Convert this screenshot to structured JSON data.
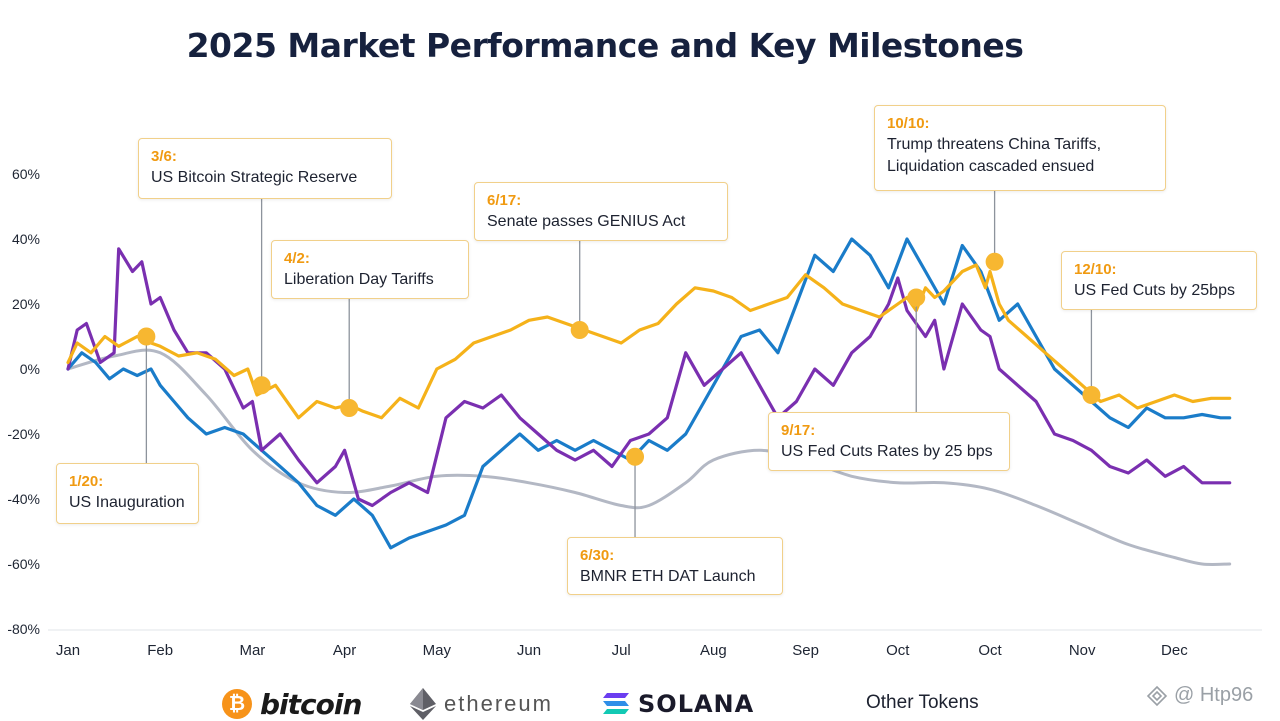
{
  "chart_data": {
    "type": "line",
    "title": "2025 Market Performance and Key Milestones",
    "xlabel": "",
    "ylabel": "",
    "ylim": [
      -80,
      60
    ],
    "yticks": [
      "60%",
      "40%",
      "20%",
      "0%",
      "-20%",
      "-40%",
      "-60%",
      "-80%"
    ],
    "ytick_values": [
      60,
      40,
      20,
      0,
      -20,
      -40,
      -60,
      -80
    ],
    "categories": [
      "Jan",
      "Feb",
      "Mar",
      "Apr",
      "May",
      "Jun",
      "Jul",
      "Aug",
      "Sep",
      "Oct",
      "Oct",
      "Nov",
      "Dec"
    ],
    "x_range": [
      0,
      12.6
    ],
    "series": [
      {
        "name": "Bitcoin",
        "color": "#f5b21a",
        "x": [
          0,
          0.1,
          0.25,
          0.4,
          0.55,
          0.75,
          0.9,
          1.0,
          1.2,
          1.4,
          1.6,
          1.8,
          1.95,
          2.05,
          2.25,
          2.5,
          2.7,
          2.9,
          3.05,
          3.2,
          3.4,
          3.6,
          3.8,
          4.0,
          4.2,
          4.4,
          4.6,
          4.8,
          5.0,
          5.2,
          5.4,
          5.6,
          5.8,
          6.0,
          6.2,
          6.4,
          6.6,
          6.8,
          7.0,
          7.2,
          7.4,
          7.6,
          7.8,
          8.0,
          8.2,
          8.4,
          8.6,
          8.8,
          9.0,
          9.1,
          9.2,
          9.3,
          9.4,
          9.5,
          9.7,
          9.85,
          9.95,
          10.0,
          10.1,
          10.2,
          10.4,
          10.6,
          10.8,
          11.0,
          11.2,
          11.4,
          11.6,
          11.8,
          12.0,
          12.2,
          12.4,
          12.6
        ],
        "values": [
          2,
          8,
          5,
          10,
          7,
          10,
          8,
          7,
          4,
          5,
          3,
          -2,
          0,
          -8,
          -5,
          -15,
          -10,
          -12,
          -11,
          -13,
          -15,
          -9,
          -12,
          0,
          3,
          8,
          10,
          12,
          15,
          16,
          14,
          12,
          10,
          8,
          12,
          14,
          20,
          25,
          24,
          22,
          18,
          20,
          22,
          29,
          25,
          20,
          18,
          16,
          20,
          22,
          18,
          25,
          22,
          24,
          30,
          32,
          25,
          30,
          20,
          15,
          10,
          5,
          0,
          -5,
          -10,
          -8,
          -12,
          -10,
          -8,
          -10,
          -9,
          -9
        ]
      },
      {
        "name": "Ethereum",
        "color": "#7a2fb0",
        "x": [
          0,
          0.1,
          0.2,
          0.35,
          0.5,
          0.55,
          0.7,
          0.8,
          0.9,
          1.0,
          1.15,
          1.3,
          1.5,
          1.7,
          1.9,
          2.0,
          2.1,
          2.3,
          2.5,
          2.7,
          2.9,
          3.0,
          3.15,
          3.3,
          3.5,
          3.7,
          3.9,
          4.1,
          4.3,
          4.5,
          4.7,
          4.9,
          5.1,
          5.3,
          5.5,
          5.7,
          5.9,
          6.1,
          6.3,
          6.5,
          6.7,
          6.9,
          7.1,
          7.3,
          7.5,
          7.7,
          7.9,
          8.1,
          8.3,
          8.5,
          8.7,
          8.9,
          9.0,
          9.1,
          9.3,
          9.4,
          9.5,
          9.7,
          9.9,
          10.0,
          10.1,
          10.3,
          10.5,
          10.7,
          10.9,
          11.1,
          11.3,
          11.5,
          11.7,
          11.9,
          12.1,
          12.3,
          12.5,
          12.6
        ],
        "values": [
          0,
          12,
          14,
          2,
          5,
          37,
          30,
          33,
          20,
          22,
          12,
          5,
          5,
          0,
          -12,
          -10,
          -25,
          -20,
          -28,
          -35,
          -30,
          -25,
          -40,
          -42,
          -38,
          -35,
          -38,
          -15,
          -10,
          -12,
          -8,
          -15,
          -20,
          -25,
          -28,
          -25,
          -30,
          -22,
          -20,
          -15,
          5,
          -5,
          0,
          5,
          -5,
          -15,
          -10,
          0,
          -5,
          5,
          10,
          20,
          28,
          18,
          10,
          15,
          0,
          20,
          12,
          10,
          0,
          -5,
          -10,
          -20,
          -22,
          -25,
          -30,
          -32,
          -28,
          -33,
          -30,
          -35,
          -35,
          -35
        ]
      },
      {
        "name": "Solana",
        "color": "#1a7cc9",
        "x": [
          0,
          0.15,
          0.3,
          0.45,
          0.6,
          0.75,
          0.9,
          1.0,
          1.15,
          1.3,
          1.5,
          1.7,
          1.9,
          2.1,
          2.3,
          2.5,
          2.7,
          2.9,
          3.1,
          3.3,
          3.5,
          3.7,
          3.9,
          4.1,
          4.3,
          4.5,
          4.7,
          4.9,
          5.1,
          5.3,
          5.5,
          5.7,
          5.9,
          6.1,
          6.3,
          6.5,
          6.7,
          6.9,
          7.1,
          7.3,
          7.5,
          7.7,
          7.9,
          8.1,
          8.3,
          8.5,
          8.7,
          8.9,
          9.1,
          9.3,
          9.5,
          9.7,
          9.9,
          10.1,
          10.3,
          10.5,
          10.7,
          10.9,
          11.1,
          11.3,
          11.5,
          11.7,
          11.9,
          12.1,
          12.3,
          12.5,
          12.6
        ],
        "values": [
          0,
          5,
          2,
          -3,
          0,
          -2,
          0,
          -5,
          -10,
          -15,
          -20,
          -18,
          -20,
          -25,
          -30,
          -35,
          -42,
          -45,
          -40,
          -45,
          -55,
          -52,
          -50,
          -48,
          -45,
          -30,
          -25,
          -20,
          -25,
          -22,
          -25,
          -22,
          -25,
          -28,
          -22,
          -25,
          -20,
          -10,
          0,
          10,
          12,
          5,
          20,
          35,
          30,
          40,
          35,
          25,
          40,
          30,
          20,
          38,
          30,
          15,
          20,
          10,
          0,
          -5,
          -10,
          -15,
          -18,
          -12,
          -15,
          -15,
          -14,
          -15,
          -15
        ]
      },
      {
        "name": "Other Tokens",
        "color": "#b3b8c4",
        "x": [
          0,
          0.5,
          1.0,
          1.5,
          2.0,
          2.5,
          3.0,
          3.5,
          4.0,
          4.5,
          5.0,
          5.5,
          6.0,
          6.3,
          6.7,
          7.0,
          7.5,
          8.0,
          8.5,
          9.0,
          9.5,
          10.0,
          10.5,
          11.0,
          11.5,
          12.0,
          12.3,
          12.6
        ],
        "values": [
          0,
          4,
          5,
          -8,
          -25,
          -35,
          -38,
          -36,
          -33,
          -33,
          -35,
          -38,
          -42,
          -42,
          -35,
          -28,
          -25,
          -28,
          -33,
          -35,
          -35,
          -37,
          -42,
          -48,
          -54,
          -58,
          -60,
          -60
        ]
      }
    ],
    "milestones": [
      {
        "date": "1/20:",
        "label": "US Inauguration",
        "x": 0.85,
        "y": 10
      },
      {
        "date": "3/6:",
        "label": "US Bitcoin Strategic Reserve",
        "x": 2.1,
        "y": -5
      },
      {
        "date": "4/2:",
        "label": "Liberation Day Tariffs",
        "x": 3.05,
        "y": -12
      },
      {
        "date": "6/17:",
        "label": "Senate passes GENIUS Act",
        "x": 5.55,
        "y": 12
      },
      {
        "date": "6/30:",
        "label": "BMNR ETH DAT Launch",
        "x": 6.15,
        "y": -27
      },
      {
        "date": "9/17:",
        "label": "US Fed Cuts Rates by 25 bps",
        "x": 9.2,
        "y": 22
      },
      {
        "date": "10/10:",
        "label": "Trump threatens China Tariffs, Liquidation cascaded ensued",
        "label_lines": [
          "Trump threatens China Tariffs,",
          "Liquidation cascaded ensued"
        ],
        "x": 10.05,
        "y": 33
      },
      {
        "date": "12/10:",
        "label": "US Fed Cuts by 25bps",
        "x": 11.1,
        "y": -8
      }
    ]
  },
  "legend": {
    "bitcoin_symbol": "₿",
    "bitcoin": "bitcoin",
    "ethereum": "ethereum",
    "solana": "SOLANA",
    "other": "Other Tokens"
  },
  "watermark": "@ Htp96"
}
